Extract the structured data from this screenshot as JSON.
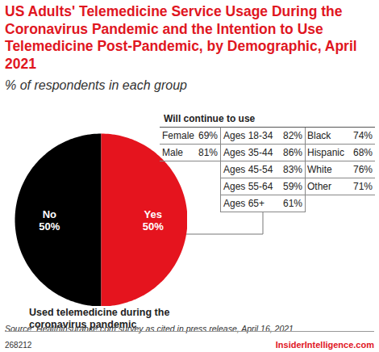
{
  "chart_data": {
    "type": "pie",
    "title": "US Adults' Telemedicine Service Usage During the Coronavirus Pandemic and the Intention to Use Telemedicine Post-Pandemic, by Demographic, April 2021",
    "subtitle": "% of respondents in each group",
    "categories": [
      "No",
      "Yes"
    ],
    "values": [
      50,
      50
    ],
    "value_labels": [
      "50%",
      "50%"
    ],
    "colors": [
      "#000000",
      "#e5141e"
    ],
    "data_labels": true,
    "caption": "Used telemedicine during the coronavirus pandemic",
    "table": {
      "title": "Will continue to use",
      "columns": [
        [
          {
            "group": "Female",
            "value": 69,
            "label": "69%"
          },
          {
            "group": "Male",
            "value": 81,
            "label": "81%"
          }
        ],
        [
          {
            "group": "Ages 18-34",
            "value": 82,
            "label": "82%"
          },
          {
            "group": "Ages 35-44",
            "value": 86,
            "label": "86%"
          },
          {
            "group": "Ages 45-54",
            "value": 83,
            "label": "83%"
          },
          {
            "group": "Ages 55-64",
            "value": 59,
            "label": "59%"
          },
          {
            "group": "Ages 65+",
            "value": 61,
            "label": "61%"
          }
        ],
        [
          {
            "group": "Black",
            "value": 74,
            "label": "74%"
          },
          {
            "group": "Hispanic",
            "value": 68,
            "label": "68%"
          },
          {
            "group": "White",
            "value": 76,
            "label": "76%"
          },
          {
            "group": "Other",
            "value": 71,
            "label": "71%"
          }
        ]
      ]
    },
    "source": "Source: Healthinsurance.com survey as cited in press release, April 16, 2021",
    "chart_id": "268212",
    "brand": "InsiderIntelligence.com"
  }
}
